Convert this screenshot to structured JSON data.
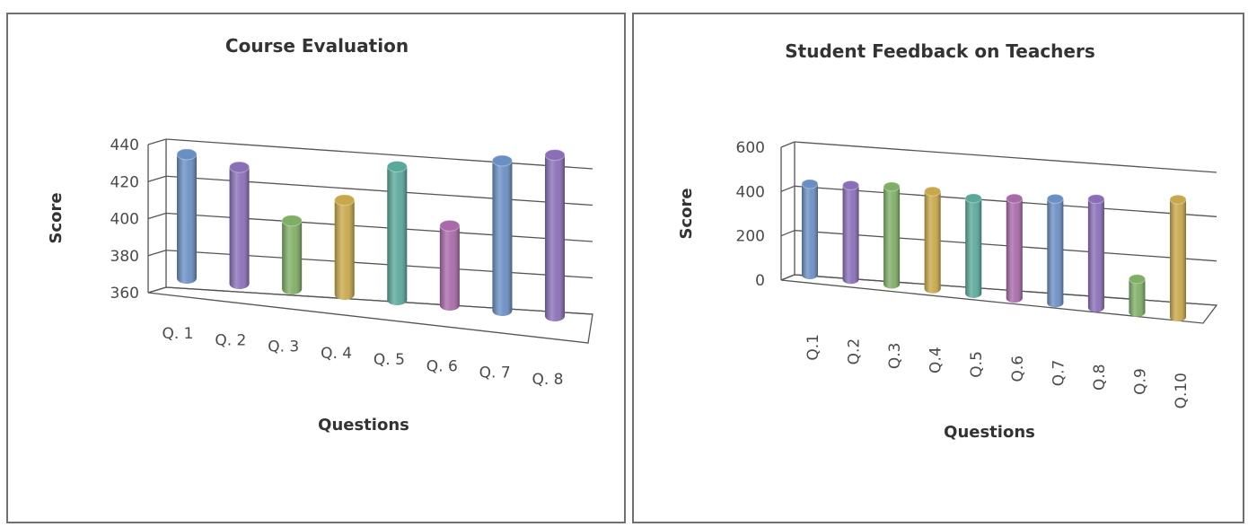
{
  "chart_data": [
    {
      "type": "bar",
      "title": "Course Evaluation",
      "xlabel": "Questions",
      "ylabel": "Score",
      "ylim": [
        360,
        440
      ],
      "yticks": [
        360,
        380,
        400,
        420,
        440
      ],
      "yticklabels": [
        "360",
        "380",
        "400",
        "420",
        "440"
      ],
      "categories": [
        "Q. 1",
        "Q. 2",
        "Q. 3",
        "Q. 4",
        "Q. 5",
        "Q. 6",
        "Q. 7",
        "Q. 8"
      ],
      "values": [
        427,
        423,
        397,
        411,
        432,
        403,
        441,
        447
      ],
      "grid": true,
      "legend": "none"
    },
    {
      "type": "bar",
      "title": "Student Feedback on Teachers",
      "xlabel": "Questions",
      "ylabel": "Score",
      "ylim": [
        0,
        600
      ],
      "yticks": [
        0,
        200,
        400,
        600
      ],
      "yticklabels": [
        "0",
        "200",
        "400",
        "600"
      ],
      "categories": [
        "Q.1",
        "Q.2",
        "Q.3",
        "Q.4",
        "Q.5",
        "Q.6",
        "Q.7",
        "Q.8",
        "Q.9",
        "Q.10"
      ],
      "values": [
        410,
        425,
        440,
        440,
        430,
        450,
        470,
        490,
        150,
        530
      ],
      "grid": true,
      "legend": "none"
    }
  ],
  "colors": {
    "frame": "#606060",
    "grid": "#555555",
    "bar_palette": [
      "#6a8fc4",
      "#8a6fb8",
      "#7fae66",
      "#c8a84a",
      "#5aa89a",
      "#a86aa8"
    ]
  }
}
